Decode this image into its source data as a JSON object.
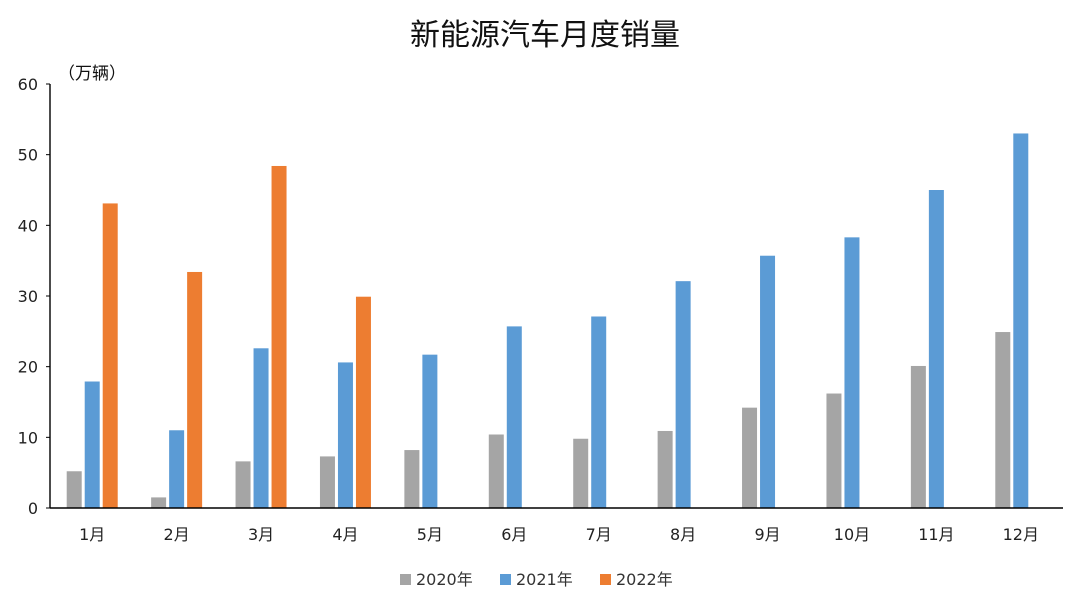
{
  "chart_data": {
    "type": "bar",
    "title": "新能源汽车月度销量",
    "unit_label": "（万辆）",
    "xlabel": "",
    "ylabel": "",
    "ylim": [
      0,
      60
    ],
    "yticks": [
      0,
      10,
      20,
      30,
      40,
      50,
      60
    ],
    "grid": false,
    "legend_position": "bottom",
    "categories": [
      "1月",
      "2月",
      "3月",
      "4月",
      "5月",
      "6月",
      "7月",
      "8月",
      "9月",
      "10月",
      "11月",
      "12月"
    ],
    "series": [
      {
        "name": "2020年",
        "color": "#a5a5a5",
        "values": [
          5.2,
          1.5,
          6.6,
          7.3,
          8.2,
          10.4,
          9.8,
          10.9,
          14.2,
          16.2,
          20.1,
          24.9
        ]
      },
      {
        "name": "2021年",
        "color": "#5b9bd5",
        "values": [
          17.9,
          11.0,
          22.6,
          20.6,
          21.7,
          25.7,
          27.1,
          32.1,
          35.7,
          38.3,
          45.0,
          53.0
        ]
      },
      {
        "name": "2022年",
        "color": "#ed7d31",
        "values": [
          43.1,
          33.4,
          48.4,
          29.9,
          null,
          null,
          null,
          null,
          null,
          null,
          null,
          null
        ]
      }
    ]
  }
}
